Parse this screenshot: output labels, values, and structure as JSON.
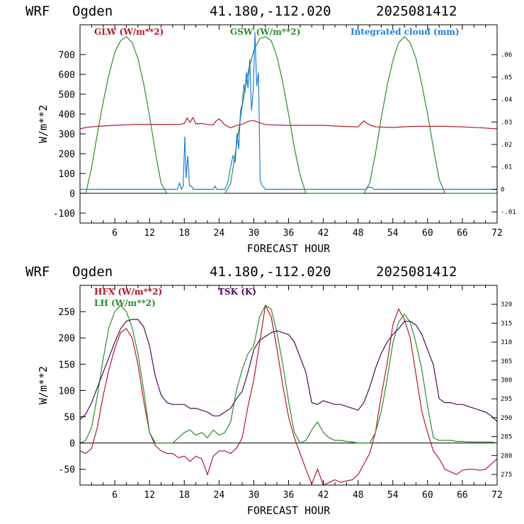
{
  "colors": {
    "red": "#b2182b",
    "green": "#2e8b2e",
    "blue": "#1e7fd8",
    "purple": "#4b0a5a"
  },
  "chart_data": [
    {
      "type": "line",
      "header": {
        "model": "WRF",
        "site": "Ogden",
        "coords": "41.180,-112.020",
        "run": "2025081412"
      },
      "xlabel": "FORECAST HOUR",
      "ylabel": "W/m**2",
      "xlim": [
        0,
        72
      ],
      "ylim": [
        -150,
        850
      ],
      "x_ticks": [
        6,
        12,
        18,
        24,
        30,
        36,
        42,
        48,
        54,
        60,
        66,
        72
      ],
      "y_ticks": [
        -100,
        0,
        100,
        200,
        300,
        400,
        500,
        600,
        700
      ],
      "y2lim": [
        -0.015,
        0.0733
      ],
      "y2_ticks": [
        -0.01,
        0,
        0.01,
        0.02,
        0.03,
        0.04,
        0.05,
        0.06
      ],
      "y2_tick_labels": [
        "-.01",
        "0",
        ".01",
        ".02",
        ".03",
        ".04",
        ".05",
        ".06"
      ],
      "series": [
        {
          "name": "GLW (W/m**2)",
          "color": "red",
          "axis": "left",
          "x": [
            0,
            1,
            3,
            6,
            9,
            12,
            15,
            17,
            18,
            18.5,
            19,
            19.5,
            20,
            21,
            22,
            23,
            23.5,
            24,
            24.5,
            25,
            26,
            27,
            28,
            29,
            30,
            31,
            32,
            33,
            36,
            39,
            42,
            45,
            48,
            49,
            50,
            51,
            54,
            57,
            60,
            63,
            66,
            69,
            72
          ],
          "y": [
            325,
            332,
            338,
            343,
            347,
            348,
            348,
            347,
            352,
            380,
            358,
            382,
            350,
            352,
            347,
            345,
            365,
            375,
            362,
            345,
            330,
            342,
            348,
            363,
            367,
            355,
            347,
            345,
            343,
            343,
            343,
            338,
            335,
            365,
            345,
            335,
            332,
            337,
            338,
            338,
            335,
            331,
            325
          ]
        },
        {
          "name": "GSW (W/m**2)",
          "color": "green",
          "axis": "left",
          "x": [
            0,
            1,
            2,
            3,
            4,
            5,
            6,
            7,
            8,
            9,
            10,
            11,
            12,
            13,
            14,
            15,
            25,
            26,
            27,
            28,
            29,
            30,
            31,
            32,
            33,
            34,
            35,
            36,
            37,
            38,
            39,
            49,
            50,
            51,
            52,
            53,
            54,
            55,
            56,
            57,
            58,
            59,
            60,
            61,
            62,
            63,
            72
          ],
          "y": [
            0,
            0,
            130,
            300,
            460,
            600,
            710,
            770,
            790,
            760,
            680,
            550,
            390,
            210,
            50,
            0,
            0,
            50,
            240,
            440,
            610,
            720,
            780,
            790,
            770,
            690,
            560,
            400,
            230,
            90,
            0,
            0,
            50,
            200,
            380,
            540,
            670,
            760,
            790,
            760,
            680,
            550,
            400,
            230,
            70,
            0,
            0
          ]
        },
        {
          "name": "Integrated cloud (mm)",
          "color": "blue",
          "axis": "right",
          "x": [
            0,
            16.8,
            17.2,
            17.5,
            17.8,
            18.1,
            18.3,
            18.6,
            18.9,
            19.2,
            19.6,
            23,
            23.3,
            23.6,
            24,
            25,
            25.5,
            26,
            26.4,
            26.8,
            27.1,
            27.4,
            27.7,
            28,
            28.3,
            28.5,
            28.7,
            29,
            29.3,
            29.6,
            29.9,
            30.2,
            30.5,
            30.8,
            31.1,
            31.4,
            31.7,
            32,
            49.4,
            49.8,
            50.3,
            50.8,
            72
          ],
          "y": [
            0,
            0,
            0.0028,
            0,
            0.0015,
            0.0235,
            0.005,
            0.015,
            0.0015,
            0.0015,
            0,
            0,
            0.0015,
            0,
            0,
            0,
            0.003,
            0.01,
            0.015,
            0.012,
            0.025,
            0.018,
            0.035,
            0.038,
            0.047,
            0.043,
            0.052,
            0.045,
            0.058,
            0.035,
            0.044,
            0.07,
            0.046,
            0.052,
            0.004,
            0.002,
            0.001,
            0,
            0,
            0.001,
            0.0009,
            0,
            0
          ]
        }
      ]
    },
    {
      "type": "line",
      "header": {
        "model": "WRF",
        "site": "Ogden",
        "coords": "41.180,-112.020",
        "run": "2025081412"
      },
      "xlabel": "FORECAST HOUR",
      "ylabel": "W/m**2",
      "xlim": [
        0,
        72
      ],
      "ylim": [
        -80,
        300
      ],
      "x_ticks": [
        6,
        12,
        18,
        24,
        30,
        36,
        42,
        48,
        54,
        60,
        66,
        72
      ],
      "y_ticks": [
        -50,
        0,
        50,
        100,
        150,
        200,
        250
      ],
      "y2lim": [
        272.2,
        325
      ],
      "y2_ticks": [
        275,
        280,
        285,
        290,
        295,
        300,
        305,
        310,
        315,
        320
      ],
      "y2_tick_labels": [
        "275",
        "280",
        "285",
        "290",
        "295",
        "300",
        "305",
        "310",
        "315",
        "320"
      ],
      "series": [
        {
          "name": "HFX (W/m**2)",
          "color": "red",
          "axis": "left",
          "x": [
            0,
            1,
            2,
            3,
            4,
            5,
            6,
            7,
            8,
            9,
            10,
            11,
            12,
            13,
            14,
            15,
            16,
            17,
            18,
            19,
            20,
            21,
            22,
            23,
            24,
            25,
            26,
            27,
            28,
            29,
            30,
            31,
            32,
            33,
            34,
            35,
            36,
            37,
            38,
            39,
            40,
            41,
            42,
            43,
            44,
            45,
            46,
            47,
            48,
            49,
            50,
            51,
            52,
            53,
            54,
            55,
            56,
            57,
            58,
            59,
            60,
            61,
            62,
            63,
            64,
            65,
            66,
            67,
            68,
            69,
            70,
            71,
            72
          ],
          "y": [
            -15,
            -20,
            -10,
            30,
            90,
            140,
            180,
            210,
            218,
            200,
            150,
            80,
            20,
            -5,
            -15,
            -20,
            -20,
            -28,
            -25,
            -35,
            -25,
            -30,
            -60,
            -25,
            -15,
            -15,
            -20,
            -10,
            10,
            70,
            120,
            190,
            262,
            240,
            180,
            110,
            50,
            10,
            -20,
            -50,
            -78,
            -50,
            -80,
            -75,
            -70,
            -75,
            -72,
            -70,
            -60,
            -40,
            -20,
            20,
            90,
            150,
            225,
            255,
            235,
            200,
            130,
            60,
            20,
            -15,
            -30,
            -50,
            -55,
            -60,
            -52,
            -50,
            -50,
            -52,
            -50,
            -40,
            -30
          ]
        },
        {
          "name": "LH (W/m**2)",
          "color": "green",
          "axis": "left",
          "x": [
            0,
            1,
            2,
            3,
            4,
            5,
            6,
            7,
            8,
            9,
            10,
            11,
            12,
            13,
            14,
            15,
            16,
            17,
            18,
            19,
            20,
            21,
            22,
            23,
            24,
            25,
            26,
            27,
            28,
            29,
            30,
            31,
            32,
            33,
            34,
            35,
            36,
            37,
            38,
            39,
            40,
            41,
            42,
            43,
            44,
            45,
            46,
            47,
            48,
            49,
            50,
            51,
            52,
            53,
            54,
            55,
            56,
            57,
            58,
            59,
            60,
            61,
            62,
            63,
            64,
            65,
            66,
            67,
            68,
            69,
            70,
            71,
            72
          ],
          "y": [
            0,
            5,
            30,
            90,
            160,
            220,
            250,
            262,
            250,
            220,
            170,
            100,
            20,
            0,
            0,
            0,
            0,
            10,
            20,
            25,
            15,
            20,
            10,
            25,
            15,
            20,
            40,
            100,
            140,
            170,
            185,
            240,
            262,
            255,
            210,
            150,
            80,
            20,
            0,
            5,
            25,
            40,
            20,
            10,
            5,
            5,
            3,
            2,
            0,
            0,
            0,
            20,
            60,
            120,
            190,
            230,
            245,
            230,
            190,
            140,
            70,
            10,
            5,
            5,
            5,
            3,
            3,
            2,
            2,
            2,
            2,
            2,
            0
          ]
        },
        {
          "name": "TSK (K)",
          "color": "purple",
          "axis": "right",
          "x": [
            0,
            1,
            2,
            3,
            4,
            5,
            6,
            7,
            8,
            9,
            10,
            11,
            12,
            13,
            14,
            15,
            16,
            17,
            18,
            19,
            20,
            21,
            22,
            23,
            24,
            25,
            26,
            27,
            28,
            29,
            30,
            31,
            32,
            33,
            34,
            35,
            36,
            37,
            38,
            39,
            40,
            41,
            42,
            43,
            44,
            45,
            46,
            47,
            48,
            49,
            50,
            51,
            52,
            53,
            54,
            55,
            56,
            57,
            58,
            59,
            60,
            61,
            62,
            63,
            64,
            65,
            66,
            67,
            68,
            69,
            70,
            71,
            72
          ],
          "y": [
            289.5,
            291,
            294,
            298,
            302,
            306,
            310,
            313.5,
            315.5,
            316,
            316,
            314,
            309,
            301,
            296,
            294,
            293.5,
            293.5,
            293.5,
            292.5,
            292.5,
            292,
            291.5,
            290.5,
            290.5,
            291.5,
            292.5,
            295,
            297,
            302,
            308,
            310.5,
            311.5,
            312.5,
            313,
            312.5,
            312,
            310,
            306,
            302,
            294,
            293.5,
            294.5,
            294,
            293.5,
            293.5,
            293,
            292.5,
            292,
            294,
            298,
            303,
            307,
            310,
            312,
            313.5,
            315.5,
            315.5,
            314.5,
            312,
            308,
            304,
            295,
            294,
            294,
            293.5,
            293.5,
            293,
            292.5,
            292,
            291.5,
            290.5,
            289
          ]
        }
      ]
    }
  ]
}
